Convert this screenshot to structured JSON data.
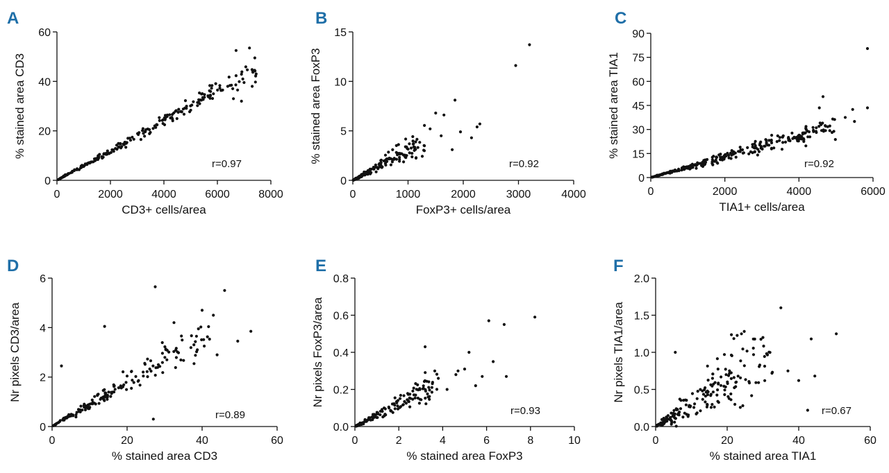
{
  "colors": {
    "panel_letter": "#1f6fa8",
    "points": "#111111",
    "axes": "#111111"
  },
  "chart_data": [
    {
      "panel": "A",
      "type": "scatter",
      "xlabel": "CD3+ cells/area",
      "ylabel": "% stained area CD3",
      "xlim": [
        0,
        8000
      ],
      "ylim": [
        0,
        60
      ],
      "xticks": [
        0,
        2000,
        4000,
        6000,
        8000
      ],
      "yticks": [
        0,
        20,
        40,
        60
      ],
      "annotation": "r=0.97",
      "trend": {
        "kind": "linear",
        "slope": 0.006,
        "intercept": 0,
        "noise": 0.09,
        "n": 230,
        "x_range": [
          50,
          7500
        ],
        "x_skew": 1.25,
        "seed": 11
      },
      "extra_points": [
        [
          6700,
          52.5
        ],
        [
          7200,
          53.5
        ],
        [
          7400,
          49.5
        ],
        [
          7450,
          43
        ],
        [
          6600,
          33
        ],
        [
          6900,
          32
        ],
        [
          7300,
          38
        ]
      ]
    },
    {
      "panel": "B",
      "type": "scatter",
      "xlabel": "FoxP3+ cells/area",
      "ylabel": "% stained area FoxP3",
      "xlim": [
        0,
        4000
      ],
      "ylim": [
        0,
        15
      ],
      "xticks": [
        0,
        1000,
        2000,
        3000,
        4000
      ],
      "yticks": [
        0,
        5,
        10,
        15
      ],
      "annotation": "r=0.92",
      "trend": {
        "kind": "linear",
        "slope": 0.0031,
        "intercept": 0,
        "noise": 0.28,
        "n": 190,
        "x_range": [
          10,
          1300
        ],
        "x_skew": 1.9,
        "seed": 23
      },
      "extra_points": [
        [
          3200,
          13.7
        ],
        [
          2950,
          11.6
        ],
        [
          1850,
          8.1
        ],
        [
          1500,
          6.8
        ],
        [
          1650,
          6.6
        ],
        [
          2300,
          5.7
        ],
        [
          2150,
          4.3
        ],
        [
          2250,
          5.4
        ],
        [
          1800,
          3.1
        ],
        [
          1600,
          4.5
        ],
        [
          1400,
          5.2
        ],
        [
          1950,
          4.9
        ]
      ]
    },
    {
      "panel": "C",
      "type": "scatter",
      "xlabel": "TIA1+ cells/area",
      "ylabel": "% stained area TIA1",
      "xlim": [
        0,
        6000
      ],
      "ylim": [
        0,
        90
      ],
      "xticks": [
        0,
        2000,
        4000,
        6000
      ],
      "yticks": [
        0,
        15,
        30,
        45,
        60,
        75,
        90
      ],
      "annotation": "r=0.92",
      "trend": {
        "kind": "linear",
        "slope": 0.0064,
        "intercept": 0,
        "noise": 0.18,
        "n": 280,
        "x_range": [
          30,
          5000
        ],
        "x_skew": 1.25,
        "seed": 37
      },
      "extra_points": [
        [
          5850,
          80.5
        ],
        [
          5850,
          43.5
        ],
        [
          4650,
          50.5
        ],
        [
          4550,
          43.5
        ],
        [
          5450,
          42.5
        ],
        [
          5250,
          37.5
        ],
        [
          5500,
          35
        ]
      ]
    },
    {
      "panel": "D",
      "type": "scatter",
      "xlabel": "% stained area CD3",
      "ylabel": "Nr pixels CD3/area",
      "xlim": [
        0,
        60
      ],
      "ylim": [
        0,
        6
      ],
      "xticks": [
        0,
        20,
        40,
        60
      ],
      "yticks": [
        0,
        2,
        4,
        6
      ],
      "annotation": "r=0.89",
      "trend": {
        "kind": "linear",
        "slope": 0.09,
        "intercept": 0,
        "noise": 0.17,
        "n": 190,
        "x_range": [
          0.3,
          42
        ],
        "x_skew": 1.3,
        "seed": 51
      },
      "extra_points": [
        [
          27.5,
          5.65
        ],
        [
          46,
          5.5
        ],
        [
          14,
          4.05
        ],
        [
          40,
          4.7
        ],
        [
          43,
          4.5
        ],
        [
          53,
          3.85
        ],
        [
          32.5,
          4.2
        ],
        [
          2.5,
          2.45
        ],
        [
          27,
          0.3
        ],
        [
          49.5,
          3.45
        ],
        [
          44,
          2.9
        ]
      ]
    },
    {
      "panel": "E",
      "type": "scatter",
      "xlabel": "% stained area FoxP3",
      "ylabel": "Nr pixels FoxP3/area",
      "xlim": [
        0,
        10
      ],
      "ylim": [
        0,
        0.8
      ],
      "xticks": [
        0,
        2,
        4,
        6,
        8,
        10
      ],
      "yticks": [
        0.0,
        0.2,
        0.4,
        0.6,
        0.8
      ],
      "annotation": "r=0.93",
      "trend": {
        "kind": "linear",
        "slope": 0.062,
        "intercept": 0,
        "noise": 0.3,
        "n": 160,
        "x_range": [
          0.05,
          3.8
        ],
        "x_skew": 1.6,
        "seed": 67
      },
      "extra_points": [
        [
          8.2,
          0.59
        ],
        [
          6.1,
          0.57
        ],
        [
          6.8,
          0.55
        ],
        [
          3.2,
          0.43
        ],
        [
          5.2,
          0.4
        ],
        [
          6.3,
          0.35
        ],
        [
          5.0,
          0.31
        ],
        [
          4.7,
          0.3
        ],
        [
          6.9,
          0.27
        ],
        [
          5.8,
          0.27
        ],
        [
          5.5,
          0.22
        ],
        [
          4.2,
          0.2
        ],
        [
          4.6,
          0.28
        ],
        [
          3.8,
          0.26
        ]
      ]
    },
    {
      "panel": "F",
      "type": "scatter",
      "xlabel": "% stained area TIA1",
      "ylabel": "Nr pixels TIA1/area",
      "xlim": [
        0,
        60
      ],
      "ylim": [
        0,
        2.0
      ],
      "xticks": [
        0,
        20,
        40,
        60
      ],
      "yticks": [
        0.0,
        0.5,
        1.0,
        1.5,
        2.0
      ],
      "annotation": "r=0.67",
      "trend": {
        "kind": "linear",
        "slope": 0.03,
        "intercept": 0,
        "noise": 0.55,
        "n": 190,
        "x_range": [
          0.3,
          33
        ],
        "x_skew": 1.3,
        "seed": 83
      },
      "extra_points": [
        [
          35,
          1.6
        ],
        [
          43.5,
          1.18
        ],
        [
          50.5,
          1.25
        ],
        [
          24,
          1.25
        ],
        [
          5.5,
          1.0
        ],
        [
          44.5,
          0.68
        ],
        [
          37,
          0.75
        ],
        [
          42.5,
          0.22
        ],
        [
          40,
          0.62
        ],
        [
          30,
          1.2
        ]
      ]
    }
  ]
}
